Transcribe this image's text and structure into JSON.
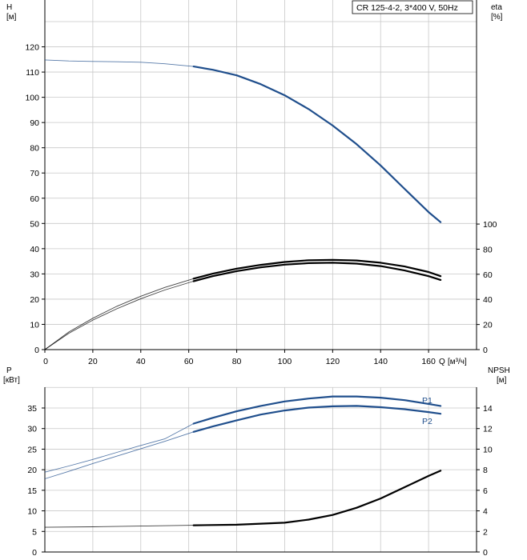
{
  "chart_data": [
    {
      "type": "line",
      "model_label": "CR 125-4-2, 3*400 V, 50Hz",
      "x_axis": {
        "label": "Q",
        "unit": "[м³/ч]",
        "range": [
          0,
          180
        ],
        "ticks": [
          "0",
          "20",
          "40",
          "60",
          "80",
          "100",
          "120",
          "140",
          "160"
        ]
      },
      "y_left": {
        "label": "H",
        "unit": "[м]",
        "range": [
          0,
          130
        ],
        "ticks": [
          "0",
          "10",
          "20",
          "30",
          "40",
          "50",
          "60",
          "70",
          "80",
          "90",
          "100",
          "110",
          "120"
        ]
      },
      "y_right": {
        "label": "eta",
        "unit": "[%]",
        "range": [
          0,
          100
        ],
        "ticks": [
          "0",
          "20",
          "40",
          "60",
          "80",
          "100"
        ]
      },
      "grid": true,
      "series": [
        {
          "axis": "left",
          "color": "#1f4e8c",
          "points": [
            [
              0,
              114.8
            ],
            [
              10,
              114.4
            ],
            [
              20,
              114.2
            ],
            [
              30,
              114.1
            ],
            [
              40,
              113.9
            ],
            [
              50,
              113.3
            ],
            [
              62,
              112.2
            ],
            [
              70,
              110.9
            ],
            [
              80,
              108.7
            ],
            [
              90,
              105.2
            ],
            [
              100,
              100.8
            ],
            [
              110,
              95.3
            ],
            [
              120,
              88.8
            ],
            [
              130,
              81.4
            ],
            [
              140,
              73.0
            ],
            [
              150,
              63.7
            ],
            [
              160,
              54.5
            ],
            [
              165,
              50.5
            ]
          ],
          "solid_from": 62
        },
        {
          "axis": "right",
          "color": "#000000",
          "points": [
            [
              0,
              0
            ],
            [
              10,
              13
            ],
            [
              20,
              23.5
            ],
            [
              30,
              32.5
            ],
            [
              40,
              40.5
            ],
            [
              50,
              47.5
            ],
            [
              62,
              54.5
            ],
            [
              70,
              58.5
            ],
            [
              80,
              62.5
            ],
            [
              90,
              65.5
            ],
            [
              100,
              67.7
            ],
            [
              110,
              68.9
            ],
            [
              120,
              69.2
            ],
            [
              130,
              68.5
            ],
            [
              140,
              66.5
            ],
            [
              150,
              63.0
            ],
            [
              160,
              58.5
            ],
            [
              165,
              55.5
            ]
          ],
          "solid_from": 62
        },
        {
          "axis": "right",
          "color": "#000000",
          "points": [
            [
              0,
              0
            ],
            [
              10,
              14
            ],
            [
              20,
              25
            ],
            [
              30,
              34.5
            ],
            [
              40,
              42.5
            ],
            [
              50,
              49.5
            ],
            [
              62,
              56.5
            ],
            [
              70,
              60.5
            ],
            [
              80,
              64.5
            ],
            [
              90,
              67.5
            ],
            [
              100,
              69.8
            ],
            [
              110,
              71.2
            ],
            [
              120,
              71.5
            ],
            [
              130,
              71.0
            ],
            [
              140,
              69.2
            ],
            [
              150,
              66.2
            ],
            [
              160,
              61.8
            ],
            [
              165,
              58.5
            ]
          ],
          "solid_from": 62
        }
      ]
    },
    {
      "type": "line",
      "y_left": {
        "label": "P",
        "unit": "[кВт]",
        "range": [
          0,
          40
        ],
        "ticks": [
          "0",
          "5",
          "10",
          "15",
          "20",
          "25",
          "30",
          "35"
        ]
      },
      "y_right": {
        "label": "NPSH",
        "unit": "[м]",
        "range": [
          0,
          16
        ],
        "ticks": [
          "0",
          "2",
          "4",
          "6",
          "8",
          "10",
          "12",
          "14"
        ]
      },
      "x_range": [
        0,
        180
      ],
      "grid": true,
      "series": [
        {
          "name": "P1",
          "axis": "left",
          "color": "#1f4e8c",
          "points": [
            [
              0,
              19.4
            ],
            [
              10,
              20.9
            ],
            [
              20,
              22.5
            ],
            [
              30,
              24.2
            ],
            [
              40,
              25.9
            ],
            [
              50,
              27.5
            ],
            [
              62,
              31.2
            ],
            [
              70,
              32.6
            ],
            [
              80,
              34.2
            ],
            [
              90,
              35.5
            ],
            [
              100,
              36.6
            ],
            [
              110,
              37.3
            ],
            [
              120,
              37.8
            ],
            [
              130,
              37.8
            ],
            [
              140,
              37.5
            ],
            [
              150,
              36.9
            ],
            [
              160,
              36.0
            ],
            [
              165,
              35.5
            ]
          ],
          "solid_from": 62
        },
        {
          "name": "P2",
          "axis": "left",
          "color": "#1f4e8c",
          "points": [
            [
              0,
              17.8
            ],
            [
              10,
              19.6
            ],
            [
              20,
              21.5
            ],
            [
              30,
              23.3
            ],
            [
              40,
              25.1
            ],
            [
              50,
              26.9
            ],
            [
              62,
              29.2
            ],
            [
              70,
              30.5
            ],
            [
              80,
              32.0
            ],
            [
              90,
              33.4
            ],
            [
              100,
              34.4
            ],
            [
              110,
              35.1
            ],
            [
              120,
              35.4
            ],
            [
              130,
              35.5
            ],
            [
              140,
              35.2
            ],
            [
              150,
              34.7
            ],
            [
              160,
              34.0
            ],
            [
              165,
              33.6
            ]
          ],
          "solid_from": 62
        },
        {
          "axis": "right",
          "color": "#000000",
          "points": [
            [
              0,
              2.4
            ],
            [
              20,
              2.45
            ],
            [
              40,
              2.52
            ],
            [
              62,
              2.6
            ],
            [
              80,
              2.65
            ],
            [
              100,
              2.85
            ],
            [
              110,
              3.15
            ],
            [
              120,
              3.6
            ],
            [
              130,
              4.3
            ],
            [
              140,
              5.2
            ],
            [
              150,
              6.3
            ],
            [
              160,
              7.4
            ],
            [
              165,
              7.9
            ]
          ],
          "solid_from": 62
        }
      ]
    }
  ]
}
